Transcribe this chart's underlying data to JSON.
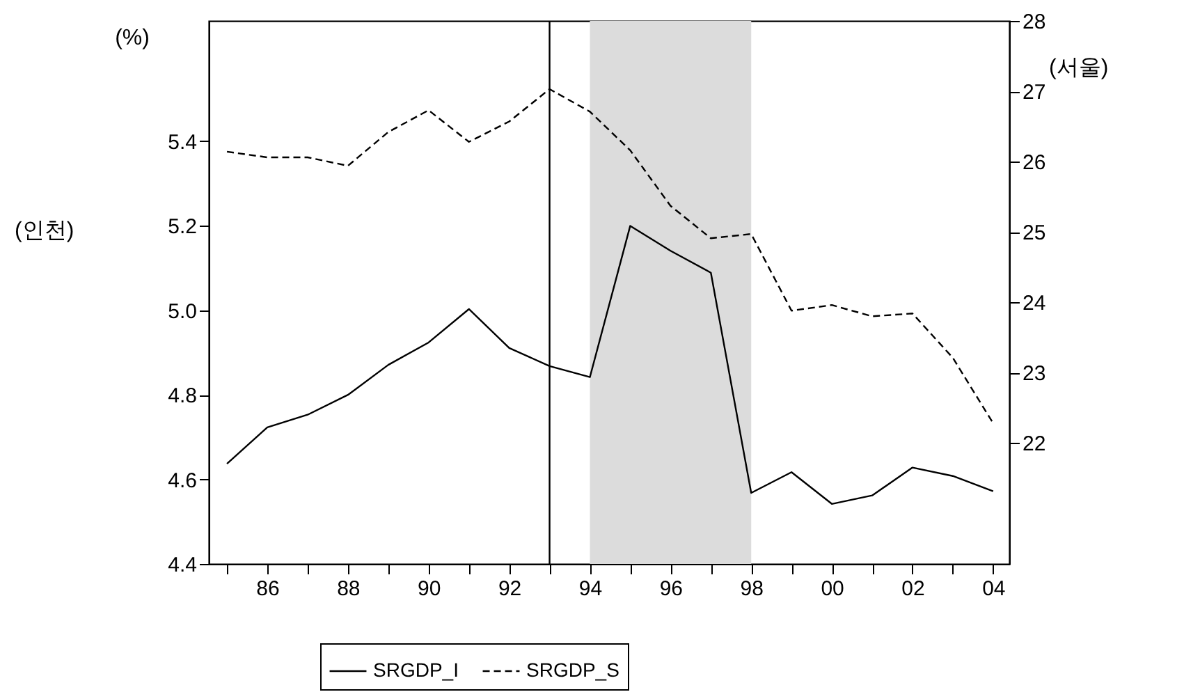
{
  "chart_data": {
    "type": "line",
    "x": [
      1985,
      1986,
      1987,
      1988,
      1989,
      1990,
      1991,
      1992,
      1993,
      1994,
      1995,
      1996,
      1997,
      1998,
      1999,
      2000,
      2001,
      2002,
      2003,
      2004
    ],
    "series": [
      {
        "name": "SRGDP_I",
        "color": "#000000",
        "line_style": "solid",
        "values": [
          4.637,
          4.723,
          4.753,
          4.8,
          4.871,
          4.924,
          5.003,
          4.911,
          4.868,
          4.842,
          5.2,
          5.141,
          5.089,
          4.568,
          4.617,
          4.542,
          4.562,
          4.628,
          4.608,
          4.572
        ]
      },
      {
        "name": "SRGDP_S",
        "color": "#000000",
        "line_style": "dashed",
        "axis": "y2",
        "values": [
          26.14,
          26.06,
          26.06,
          25.94,
          26.42,
          26.73,
          26.28,
          26.57,
          27.03,
          26.71,
          26.16,
          25.37,
          24.91,
          24.97,
          23.88,
          23.96,
          23.8,
          23.84,
          23.21,
          22.28
        ]
      }
    ],
    "ylabel": "(인천)",
    "y2label": "(서울)",
    "annotations": [
      "(%)"
    ],
    "xlim": [
      1984.55,
      2004.4
    ],
    "xticks": [
      {
        "value": 1985,
        "label": null
      },
      {
        "value": 1986,
        "label": "86"
      },
      {
        "value": 1987,
        "label": null
      },
      {
        "value": 1988,
        "label": "88"
      },
      {
        "value": 1989,
        "label": null
      },
      {
        "value": 1990,
        "label": "90"
      },
      {
        "value": 1991,
        "label": null
      },
      {
        "value": 1992,
        "label": "92"
      },
      {
        "value": 1993,
        "label": null
      },
      {
        "value": 1994,
        "label": "94"
      },
      {
        "value": 1995,
        "label": null
      },
      {
        "value": 1996,
        "label": "96"
      },
      {
        "value": 1997,
        "label": null
      },
      {
        "value": 1998,
        "label": "98"
      },
      {
        "value": 1999,
        "label": null
      },
      {
        "value": 2000,
        "label": "00"
      },
      {
        "value": 2001,
        "label": null
      },
      {
        "value": 2002,
        "label": "02"
      },
      {
        "value": 2003,
        "label": null
      },
      {
        "value": 2004,
        "label": "04"
      }
    ],
    "ylim": [
      4.4,
      5.685
    ],
    "yticks": [
      4.4,
      4.6,
      4.8,
      {
        "value": 5.0,
        "label": "5.0"
      },
      5.2,
      5.4
    ],
    "y2lim": [
      20.28,
      28
    ],
    "y2ticks": [
      22,
      23,
      24,
      25,
      26,
      27,
      28
    ],
    "ref_lines": [
      {
        "axis": "x",
        "value": 1993,
        "color": "#000000"
      }
    ],
    "bands": [
      {
        "axis": "x",
        "from": 1994,
        "to": 1998,
        "color": "#dcdcdc"
      }
    ],
    "grid": false,
    "legend": "bottom"
  }
}
